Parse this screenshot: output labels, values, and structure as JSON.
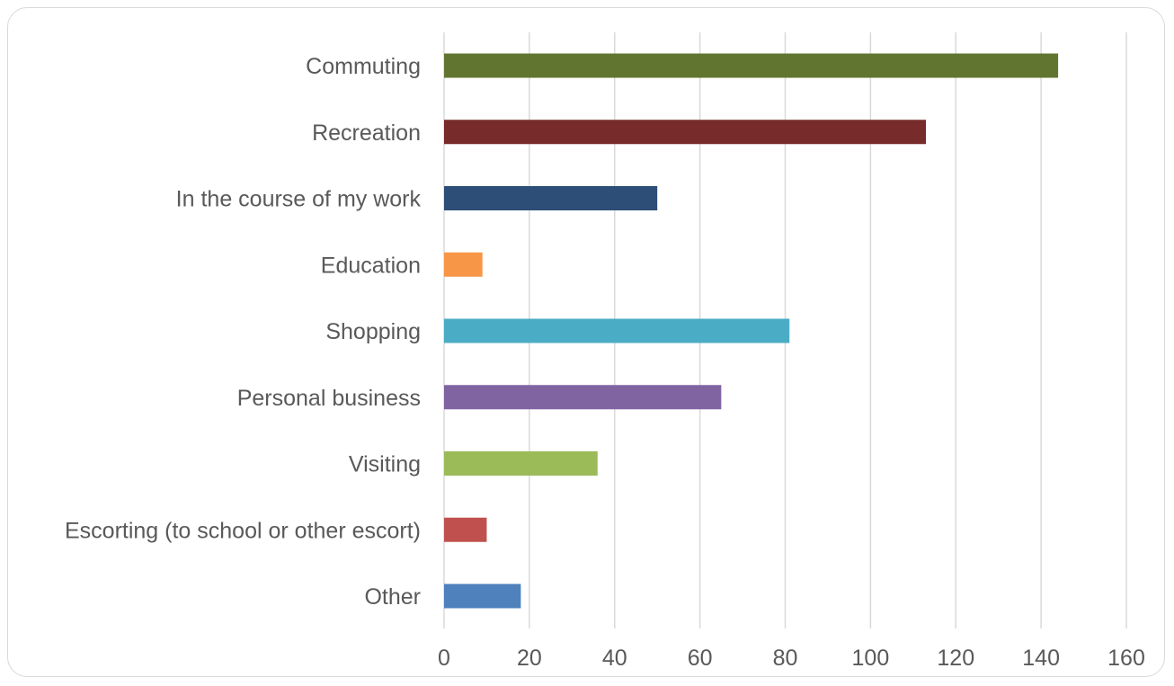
{
  "chart_data": {
    "type": "bar",
    "orientation": "horizontal",
    "categories": [
      "Commuting",
      "Recreation",
      "In the course of my work",
      "Education",
      "Shopping",
      "Personal business",
      "Visiting",
      "Escorting (to school or other escort)",
      "Other"
    ],
    "values": [
      144,
      113,
      50,
      9,
      81,
      65,
      36,
      10,
      18
    ],
    "colors": [
      "#617530",
      "#772b2b",
      "#2d4e77",
      "#f79646",
      "#4bacc6",
      "#8064a2",
      "#9bbb59",
      "#c0504d",
      "#4f81bd"
    ],
    "xlim": [
      0,
      160
    ],
    "xticks": [
      0,
      20,
      40,
      60,
      80,
      100,
      120,
      140,
      160
    ],
    "grid": true,
    "legend": "none"
  }
}
